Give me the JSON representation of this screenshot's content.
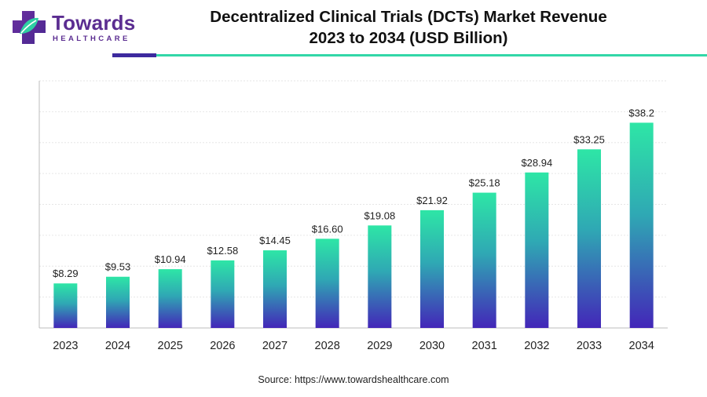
{
  "logo": {
    "brand": "Towards",
    "sub": "HEALTHCARE",
    "colors": {
      "purple": "#5b2d91",
      "teal": "#2fcfa3"
    }
  },
  "chart_data": {
    "type": "bar",
    "title_line1": "Decentralized Clinical Trials (DCTs) Market Revenue",
    "title_line2": "2023 to 2034 (USD Billion)",
    "categories": [
      "2023",
      "2024",
      "2025",
      "2026",
      "2027",
      "2028",
      "2029",
      "2030",
      "2031",
      "2032",
      "2033",
      "2034"
    ],
    "values": [
      8.29,
      9.53,
      10.94,
      12.58,
      14.45,
      16.6,
      19.08,
      21.92,
      25.18,
      28.94,
      33.25,
      38.2
    ],
    "value_labels": [
      "$8.29",
      "$9.53",
      "$10.94",
      "$12.58",
      "$14.45",
      "$16.60",
      "$19.08",
      "$21.92",
      "$25.18",
      "$28.94",
      "$33.25",
      "$38.2"
    ],
    "xlabel": "",
    "ylabel": "",
    "ylim": [
      0,
      46
    ],
    "grid": true,
    "legend": "none",
    "colors": {
      "bar_top": "#2ee6a6",
      "bar_mid": "#2fa8b4",
      "bar_bottom": "#4326b8",
      "grid": "#e6e6e6",
      "axis": "#bdbdbd"
    }
  },
  "source": "Source: https://www.towardshealthcare.com"
}
